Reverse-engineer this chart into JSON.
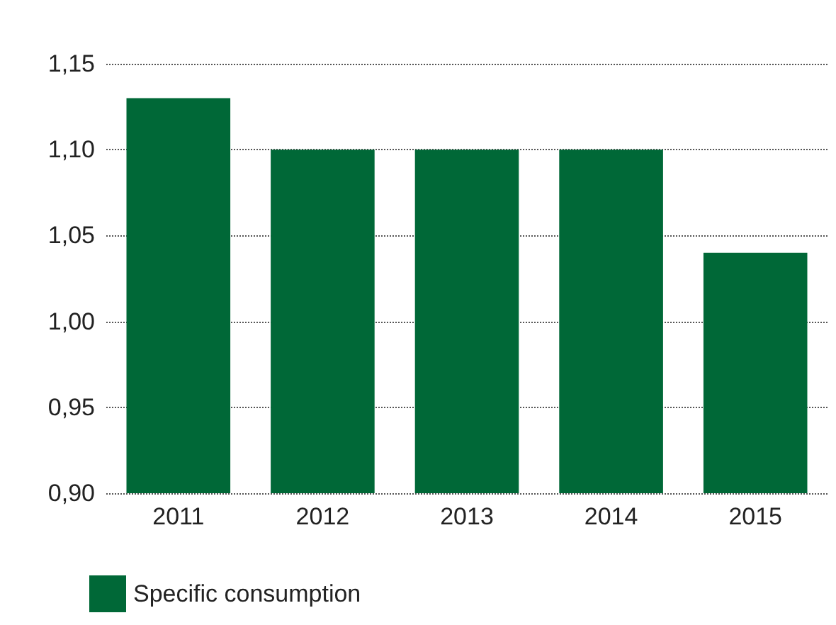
{
  "chart_data": {
    "type": "bar",
    "categories": [
      "2011",
      "2012",
      "2013",
      "2014",
      "2015"
    ],
    "series": [
      {
        "name": "Specific consumption",
        "color": "#006837",
        "values": [
          1.13,
          1.1,
          1.1,
          1.1,
          1.04
        ]
      }
    ],
    "ylim": [
      0.9,
      1.15
    ],
    "yticks": [
      {
        "value": 0.9,
        "label": "0,90"
      },
      {
        "value": 0.95,
        "label": "0,95"
      },
      {
        "value": 1.0,
        "label": "1,00"
      },
      {
        "value": 1.05,
        "label": "1,05"
      },
      {
        "value": 1.1,
        "label": "1,10"
      },
      {
        "value": 1.15,
        "label": "1,15"
      }
    ],
    "grid": "y",
    "legend": "bottom left"
  }
}
